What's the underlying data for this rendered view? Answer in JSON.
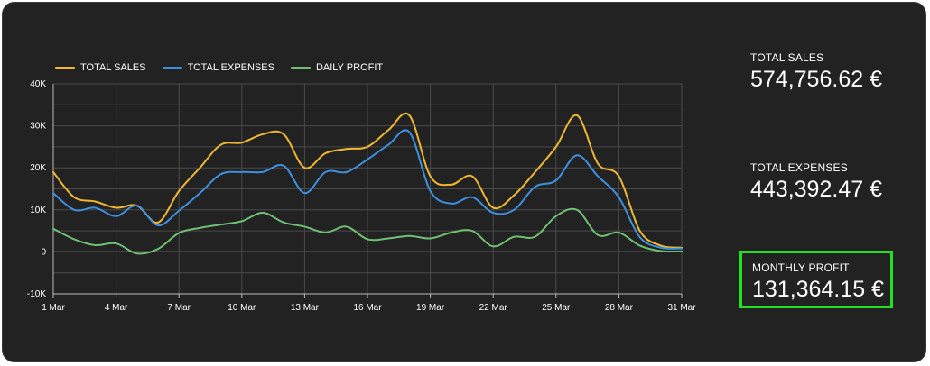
{
  "chart_data": {
    "type": "line",
    "x": [
      "1 Mar",
      "2 Mar",
      "3 Mar",
      "4 Mar",
      "5 Mar",
      "6 Mar",
      "7 Mar",
      "8 Mar",
      "9 Mar",
      "10 Mar",
      "11 Mar",
      "12 Mar",
      "13 Mar",
      "14 Mar",
      "15 Mar",
      "16 Mar",
      "17 Mar",
      "18 Mar",
      "19 Mar",
      "20 Mar",
      "21 Mar",
      "22 Mar",
      "23 Mar",
      "24 Mar",
      "25 Mar",
      "26 Mar",
      "27 Mar",
      "28 Mar",
      "29 Mar",
      "30 Mar",
      "31 Mar"
    ],
    "x_ticks": [
      "1 Mar",
      "4 Mar",
      "7 Mar",
      "10 Mar",
      "13 Mar",
      "16 Mar",
      "19 Mar",
      "22 Mar",
      "25 Mar",
      "28 Mar",
      "31 Mar"
    ],
    "y_ticks": [
      "-10K",
      "0",
      "10K",
      "20K",
      "30K",
      "40K"
    ],
    "ylim": [
      -10000,
      40000
    ],
    "grid": true,
    "legend_position": "top-left",
    "series": [
      {
        "name": "TOTAL SALES",
        "color": "#f0b92d",
        "values": [
          19000,
          13000,
          12000,
          10500,
          11000,
          7000,
          14500,
          20000,
          25500,
          26000,
          28000,
          28000,
          20000,
          23500,
          24500,
          25000,
          29000,
          32500,
          18000,
          16000,
          18000,
          10500,
          13500,
          19000,
          25000,
          32500,
          21000,
          18000,
          5000,
          1500,
          1000
        ]
      },
      {
        "name": "TOTAL EXPENSES",
        "color": "#3d8fe0",
        "values": [
          14000,
          10000,
          10500,
          8500,
          11000,
          6300,
          9800,
          14000,
          18500,
          19000,
          19000,
          20500,
          14000,
          19000,
          19000,
          22000,
          25500,
          28500,
          14500,
          11500,
          13000,
          9300,
          10000,
          15500,
          17000,
          23000,
          18000,
          13000,
          3500,
          1000,
          800
        ]
      },
      {
        "name": "DAILY PROFIT",
        "color": "#6fbf73",
        "values": [
          5500,
          3000,
          1600,
          2000,
          -400,
          700,
          4500,
          5700,
          6500,
          7300,
          9300,
          7000,
          6000,
          4600,
          6000,
          3000,
          3200,
          3800,
          3200,
          4600,
          5000,
          1300,
          3600,
          3600,
          8500,
          10000,
          4000,
          4600,
          1500,
          200,
          100
        ]
      }
    ]
  },
  "kpis": {
    "sales_label": "TOTAL SALES",
    "sales_value": "574,756.62 €",
    "expenses_label": "TOTAL EXPENSES",
    "expenses_value": "443,392.47 €",
    "profit_label": "MONTHLY PROFIT",
    "profit_value": "131,364.15 €",
    "highlight_color": "#22e022"
  }
}
